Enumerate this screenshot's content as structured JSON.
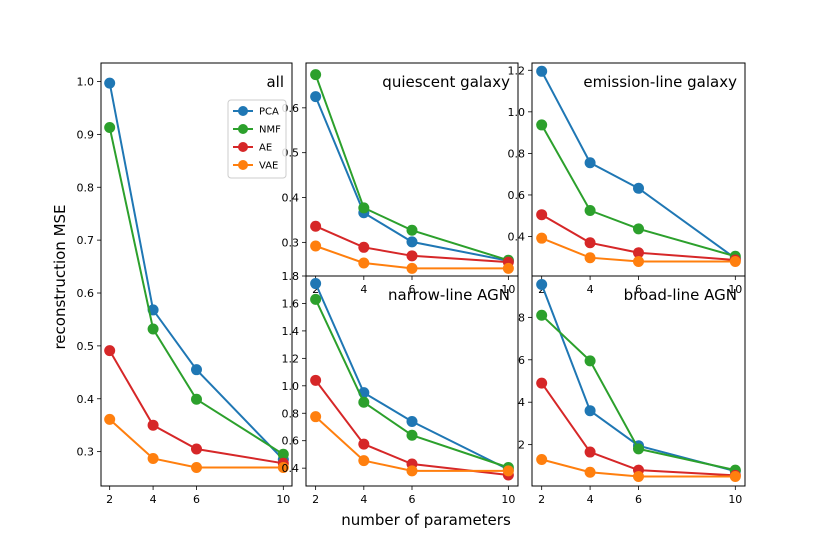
{
  "chart_data": {
    "type": "line",
    "xlabel": "number of parameters",
    "ylabel": "reconstruction MSE",
    "x": [
      2,
      4,
      6,
      10
    ],
    "x_ticks": [
      "2",
      "4",
      "6",
      "10"
    ],
    "colors": {
      "PCA": "#1f77b4",
      "NMF": "#2ca02c",
      "AE": "#d62728",
      "VAE": "#ff7f0e"
    },
    "legend": {
      "location": "upper-right of 'all' panel",
      "entries": [
        "PCA",
        "NMF",
        "AE",
        "VAE"
      ]
    },
    "panels": [
      {
        "title": "all",
        "ylim": [
          0.235,
          1.035
        ],
        "y_ticks": [
          0.3,
          0.4,
          0.5,
          0.6,
          0.7,
          0.8,
          0.9,
          1.0
        ],
        "y_tick_labels": [
          "0.3",
          "0.4",
          "0.5",
          "0.6",
          "0.7",
          "0.8",
          "0.9",
          "1.0"
        ],
        "series": [
          {
            "name": "PCA",
            "values": [
              0.997,
              0.568,
              0.455,
              0.285
            ]
          },
          {
            "name": "NMF",
            "values": [
              0.913,
              0.532,
              0.399,
              0.295
            ]
          },
          {
            "name": "AE",
            "values": [
              0.491,
              0.35,
              0.305,
              0.278
            ]
          },
          {
            "name": "VAE",
            "values": [
              0.361,
              0.287,
              0.27,
              0.27
            ]
          }
        ]
      },
      {
        "title": "quiescent galaxy",
        "ylim": [
          0.225,
          0.7
        ],
        "y_ticks": [
          0.3,
          0.4,
          0.5,
          0.6
        ],
        "y_tick_labels": [
          "0.3",
          "0.4",
          "0.5",
          "0.6"
        ],
        "series": [
          {
            "name": "PCA",
            "values": [
              0.625,
              0.366,
              0.301,
              0.259
            ]
          },
          {
            "name": "NMF",
            "values": [
              0.674,
              0.377,
              0.327,
              0.26
            ]
          },
          {
            "name": "AE",
            "values": [
              0.336,
              0.289,
              0.27,
              0.256
            ]
          },
          {
            "name": "VAE",
            "values": [
              0.292,
              0.254,
              0.242,
              0.242
            ]
          }
        ]
      },
      {
        "title": "emission-line galaxy",
        "ylim": [
          0.21,
          1.235
        ],
        "y_ticks": [
          0.4,
          0.6,
          0.8,
          1.0,
          1.2
        ],
        "y_tick_labels": [
          "0.4",
          "0.6",
          "0.8",
          "1.0",
          "1.2"
        ],
        "series": [
          {
            "name": "PCA",
            "values": [
              1.195,
              0.755,
              0.632,
              0.295
            ]
          },
          {
            "name": "NMF",
            "values": [
              0.937,
              0.525,
              0.437,
              0.305
            ]
          },
          {
            "name": "AE",
            "values": [
              0.505,
              0.37,
              0.322,
              0.287
            ]
          },
          {
            "name": "VAE",
            "values": [
              0.392,
              0.298,
              0.28,
              0.28
            ]
          }
        ]
      },
      {
        "title": "narrow-line AGN",
        "ylim": [
          0.27,
          1.8
        ],
        "y_ticks": [
          0.4,
          0.6,
          0.8,
          1.0,
          1.2,
          1.4,
          1.6,
          1.8
        ],
        "y_tick_labels": [
          "0.4",
          "0.6",
          "0.8",
          "1.0",
          "1.2",
          "1.4",
          "1.6",
          "1.8"
        ],
        "series": [
          {
            "name": "PCA",
            "values": [
              1.745,
              0.95,
              0.74,
              0.39
            ]
          },
          {
            "name": "NMF",
            "values": [
              1.63,
              0.88,
              0.64,
              0.405
            ]
          },
          {
            "name": "AE",
            "values": [
              1.04,
              0.575,
              0.43,
              0.35
            ]
          },
          {
            "name": "VAE",
            "values": [
              0.775,
              0.455,
              0.38,
              0.38
            ]
          }
        ]
      },
      {
        "title": "broad-line AGN",
        "ylim": [
          0.05,
          9.95
        ],
        "y_ticks": [
          2,
          4,
          6,
          8
        ],
        "y_tick_labels": [
          "2",
          "4",
          "6",
          "8"
        ],
        "series": [
          {
            "name": "PCA",
            "values": [
              9.55,
              3.6,
              1.95,
              0.75
            ]
          },
          {
            "name": "NMF",
            "values": [
              8.1,
              5.95,
              1.8,
              0.8
            ]
          },
          {
            "name": "AE",
            "values": [
              4.9,
              1.65,
              0.8,
              0.55
            ]
          },
          {
            "name": "VAE",
            "values": [
              1.3,
              0.7,
              0.5,
              0.5
            ]
          }
        ]
      }
    ]
  }
}
